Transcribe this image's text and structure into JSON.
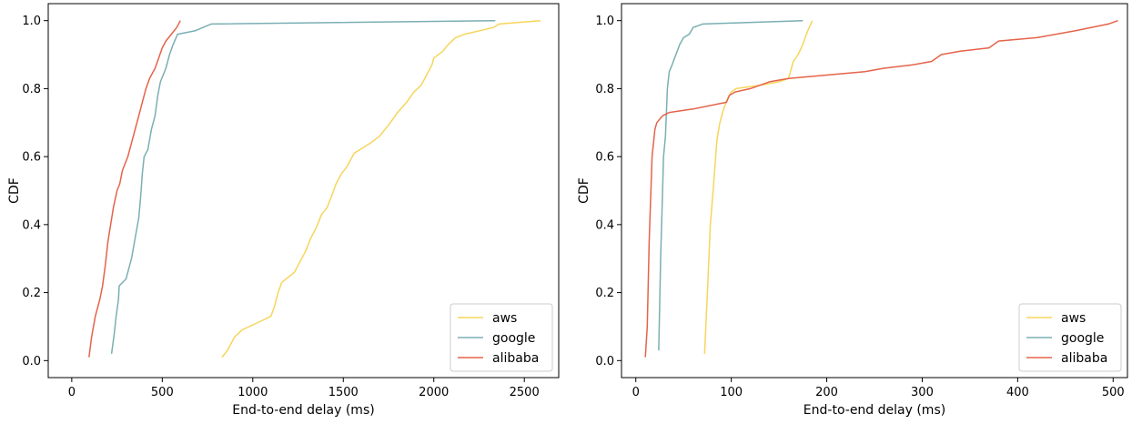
{
  "chart_data": [
    {
      "type": "line",
      "title": "",
      "xlabel": "End-to-end delay (ms)",
      "ylabel": "CDF",
      "xlim": [
        -130,
        2690
      ],
      "ylim": [
        -0.05,
        1.05
      ],
      "xticks": [
        0,
        500,
        1000,
        1500,
        2000,
        2500
      ],
      "yticks": [
        0.0,
        0.2,
        0.4,
        0.6,
        0.8,
        1.0
      ],
      "grid": false,
      "legend_position": "lower-right",
      "series": [
        {
          "name": "aws",
          "color": "#f6d55c",
          "points": [
            [
              830,
              0.01
            ],
            [
              860,
              0.03
            ],
            [
              880,
              0.05
            ],
            [
              900,
              0.07
            ],
            [
              940,
              0.09
            ],
            [
              980,
              0.1
            ],
            [
              1060,
              0.12
            ],
            [
              1100,
              0.13
            ],
            [
              1120,
              0.16
            ],
            [
              1140,
              0.2
            ],
            [
              1160,
              0.23
            ],
            [
              1230,
              0.26
            ],
            [
              1250,
              0.28
            ],
            [
              1290,
              0.32
            ],
            [
              1320,
              0.36
            ],
            [
              1350,
              0.39
            ],
            [
              1380,
              0.43
            ],
            [
              1410,
              0.45
            ],
            [
              1440,
              0.49
            ],
            [
              1460,
              0.52
            ],
            [
              1490,
              0.55
            ],
            [
              1520,
              0.57
            ],
            [
              1560,
              0.61
            ],
            [
              1650,
              0.64
            ],
            [
              1700,
              0.66
            ],
            [
              1760,
              0.7
            ],
            [
              1800,
              0.73
            ],
            [
              1850,
              0.76
            ],
            [
              1890,
              0.79
            ],
            [
              1930,
              0.81
            ],
            [
              1960,
              0.84
            ],
            [
              1990,
              0.87
            ],
            [
              2000,
              0.89
            ],
            [
              2050,
              0.91
            ],
            [
              2080,
              0.93
            ],
            [
              2120,
              0.95
            ],
            [
              2170,
              0.96
            ],
            [
              2330,
              0.98
            ],
            [
              2360,
              0.99
            ],
            [
              2590,
              1.0
            ]
          ]
        },
        {
          "name": "google",
          "color": "#7aafb3",
          "points": [
            [
              220,
              0.02
            ],
            [
              235,
              0.08
            ],
            [
              245,
              0.13
            ],
            [
              258,
              0.18
            ],
            [
              262,
              0.22
            ],
            [
              300,
              0.24
            ],
            [
              330,
              0.3
            ],
            [
              350,
              0.36
            ],
            [
              370,
              0.42
            ],
            [
              380,
              0.48
            ],
            [
              390,
              0.55
            ],
            [
              400,
              0.6
            ],
            [
              420,
              0.62
            ],
            [
              440,
              0.68
            ],
            [
              460,
              0.72
            ],
            [
              475,
              0.78
            ],
            [
              490,
              0.82
            ],
            [
              520,
              0.86
            ],
            [
              540,
              0.9
            ],
            [
              560,
              0.93
            ],
            [
              585,
              0.96
            ],
            [
              680,
              0.97
            ],
            [
              770,
              0.99
            ],
            [
              2340,
              1.0
            ]
          ]
        },
        {
          "name": "alibaba",
          "color": "#e5634a",
          "points": [
            [
              95,
              0.01
            ],
            [
              110,
              0.07
            ],
            [
              130,
              0.13
            ],
            [
              155,
              0.18
            ],
            [
              170,
              0.22
            ],
            [
              185,
              0.28
            ],
            [
              200,
              0.35
            ],
            [
              215,
              0.4
            ],
            [
              230,
              0.45
            ],
            [
              250,
              0.5
            ],
            [
              265,
              0.52
            ],
            [
              280,
              0.56
            ],
            [
              310,
              0.6
            ],
            [
              330,
              0.64
            ],
            [
              350,
              0.68
            ],
            [
              370,
              0.72
            ],
            [
              390,
              0.76
            ],
            [
              410,
              0.8
            ],
            [
              430,
              0.83
            ],
            [
              460,
              0.86
            ],
            [
              480,
              0.89
            ],
            [
              500,
              0.92
            ],
            [
              520,
              0.94
            ],
            [
              550,
              0.96
            ],
            [
              580,
              0.98
            ],
            [
              600,
              1.0
            ]
          ]
        }
      ]
    },
    {
      "type": "line",
      "title": "",
      "xlabel": "End-to-end delay (ms)",
      "ylabel": "CDF",
      "xlim": [
        -15,
        515
      ],
      "ylim": [
        -0.05,
        1.05
      ],
      "xticks": [
        0,
        100,
        200,
        300,
        400,
        500
      ],
      "yticks": [
        0.0,
        0.2,
        0.4,
        0.6,
        0.8,
        1.0
      ],
      "grid": false,
      "legend_position": "lower-right",
      "series": [
        {
          "name": "aws",
          "color": "#f6d55c",
          "points": [
            [
              72,
              0.02
            ],
            [
              75,
              0.2
            ],
            [
              78,
              0.4
            ],
            [
              81,
              0.5
            ],
            [
              85,
              0.65
            ],
            [
              88,
              0.7
            ],
            [
              92,
              0.74
            ],
            [
              96,
              0.77
            ],
            [
              100,
              0.79
            ],
            [
              105,
              0.8
            ],
            [
              130,
              0.81
            ],
            [
              150,
              0.82
            ],
            [
              160,
              0.83
            ],
            [
              165,
              0.88
            ],
            [
              170,
              0.9
            ],
            [
              175,
              0.93
            ],
            [
              180,
              0.97
            ],
            [
              185,
              1.0
            ]
          ]
        },
        {
          "name": "google",
          "color": "#7aafb3",
          "points": [
            [
              24,
              0.03
            ],
            [
              26,
              0.3
            ],
            [
              29,
              0.6
            ],
            [
              31,
              0.66
            ],
            [
              33,
              0.8
            ],
            [
              35,
              0.85
            ],
            [
              38,
              0.87
            ],
            [
              42,
              0.9
            ],
            [
              46,
              0.93
            ],
            [
              50,
              0.95
            ],
            [
              56,
              0.96
            ],
            [
              58,
              0.97
            ],
            [
              60,
              0.98
            ],
            [
              70,
              0.99
            ],
            [
              175,
              1.0
            ]
          ]
        },
        {
          "name": "alibaba",
          "color": "#e5634a",
          "points": [
            [
              10,
              0.01
            ],
            [
              12,
              0.1
            ],
            [
              14,
              0.35
            ],
            [
              17,
              0.6
            ],
            [
              20,
              0.68
            ],
            [
              22,
              0.7
            ],
            [
              28,
              0.72
            ],
            [
              35,
              0.73
            ],
            [
              60,
              0.74
            ],
            [
              95,
              0.76
            ],
            [
              98,
              0.78
            ],
            [
              104,
              0.79
            ],
            [
              120,
              0.8
            ],
            [
              140,
              0.82
            ],
            [
              160,
              0.83
            ],
            [
              200,
              0.84
            ],
            [
              240,
              0.85
            ],
            [
              260,
              0.86
            ],
            [
              290,
              0.87
            ],
            [
              310,
              0.88
            ],
            [
              320,
              0.9
            ],
            [
              340,
              0.91
            ],
            [
              370,
              0.92
            ],
            [
              380,
              0.94
            ],
            [
              420,
              0.95
            ],
            [
              460,
              0.97
            ],
            [
              495,
              0.99
            ],
            [
              505,
              1.0
            ]
          ]
        }
      ]
    }
  ]
}
